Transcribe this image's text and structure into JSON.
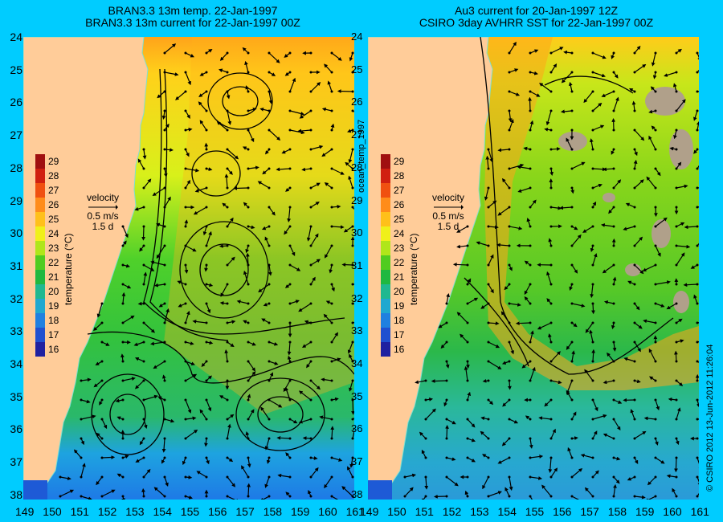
{
  "left_panel": {
    "title_line1": "BRAN3.3 13m temp. 22-Jan-1997",
    "title_line2": "BRAN3.3 13m current for 22-Jan-1997 00Z"
  },
  "right_panel": {
    "title_line1": "Au3 current for 20-Jan-1997 12Z",
    "title_line2": "CSIRO 3day AVHRR SST for 22-Jan-1997 00Z"
  },
  "lat_labels": [
    "24",
    "25",
    "26",
    "27",
    "28",
    "29",
    "30",
    "31",
    "32",
    "33",
    "34",
    "35",
    "36",
    "37",
    "38"
  ],
  "lon_labels": [
    "149",
    "150",
    "151",
    "152",
    "153",
    "154",
    "155",
    "156",
    "157",
    "158",
    "159",
    "160",
    "161"
  ],
  "colorbar": {
    "title": "temperature (°C)",
    "ticks": [
      "29",
      "28",
      "27",
      "26",
      "25",
      "24",
      "23",
      "22",
      "21",
      "20",
      "19",
      "18",
      "17",
      "16"
    ]
  },
  "velocity_key": {
    "label": "velocity",
    "speed": "0.5 m/s",
    "duration": "1.5 d"
  },
  "side_label": "ocean_temp_1997",
  "credit": "© CSIRO 2012   13-Jun-2012 11:26:04",
  "colors": {
    "background": "#00ccff",
    "land": "#ffcc99",
    "cloud": "#b0a08a"
  }
}
